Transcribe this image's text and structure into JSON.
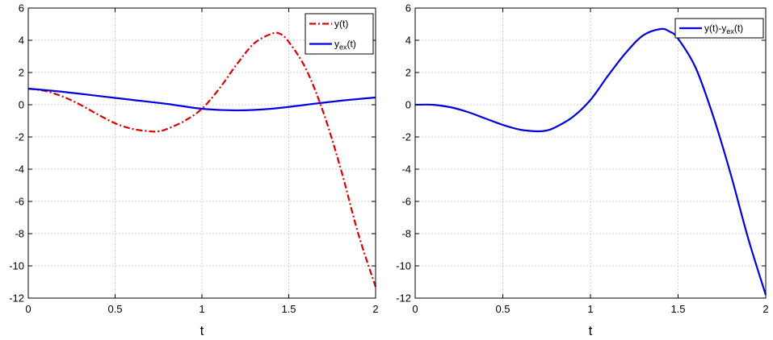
{
  "chart_data": [
    {
      "type": "line",
      "xlabel": "t",
      "ylabel": "",
      "xlim": [
        0,
        2
      ],
      "ylim": [
        -12,
        6
      ],
      "xticks": [
        "0",
        "0.5",
        "1",
        "1.5",
        "2"
      ],
      "yticks": [
        "6",
        "4",
        "2",
        "0",
        "-2",
        "-4",
        "-6",
        "-8",
        "-10",
        "-12"
      ],
      "grid": true,
      "legend_position": "top-right",
      "series": [
        {
          "name": "y(t)",
          "legend": {
            "base": "y(t)",
            "sub": "",
            "tail": ""
          },
          "color": "#e00000",
          "style": "dash-dot",
          "x": [
            0,
            0.1,
            0.2,
            0.3,
            0.4,
            0.5,
            0.6,
            0.7,
            0.75,
            0.8,
            0.9,
            1.0,
            1.1,
            1.2,
            1.3,
            1.4,
            1.45,
            1.5,
            1.6,
            1.7,
            1.8,
            1.9,
            2.0
          ],
          "y": [
            1.0,
            0.85,
            0.5,
            0.0,
            -0.6,
            -1.15,
            -1.5,
            -1.65,
            -1.65,
            -1.5,
            -1.0,
            -0.25,
            1.0,
            2.5,
            3.8,
            4.4,
            4.4,
            3.9,
            2.2,
            -0.5,
            -4.0,
            -8.0,
            -11.3
          ]
        },
        {
          "name": "yex(t)",
          "legend": {
            "base": "y",
            "sub": "ex",
            "tail": "(t)"
          },
          "color": "#0000e0",
          "style": "solid",
          "x": [
            0,
            0.2,
            0.4,
            0.6,
            0.8,
            1.0,
            1.2,
            1.4,
            1.6,
            1.8,
            2.0
          ],
          "y": [
            1.0,
            0.8,
            0.55,
            0.3,
            0.05,
            -0.25,
            -0.35,
            -0.25,
            0.0,
            0.25,
            0.45
          ]
        }
      ]
    },
    {
      "type": "line",
      "xlabel": "t",
      "ylabel": "",
      "xlim": [
        0,
        2
      ],
      "ylim": [
        -12,
        6
      ],
      "xticks": [
        "0",
        "0.5",
        "1",
        "1.5",
        "2"
      ],
      "yticks": [
        "6",
        "4",
        "2",
        "0",
        "-2",
        "-4",
        "-6",
        "-8",
        "-10",
        "-12"
      ],
      "grid": true,
      "legend_position": "top-right",
      "series": [
        {
          "name": "y(t)-yex(t)",
          "legend": {
            "base": "y(t)-y",
            "sub": "ex",
            "tail": "(t)"
          },
          "color": "#0000e0",
          "style": "solid",
          "x": [
            0,
            0.1,
            0.2,
            0.3,
            0.4,
            0.5,
            0.6,
            0.7,
            0.75,
            0.8,
            0.9,
            1.0,
            1.1,
            1.2,
            1.3,
            1.4,
            1.45,
            1.5,
            1.6,
            1.7,
            1.8,
            1.9,
            2.0
          ],
          "y": [
            0.0,
            0.0,
            -0.15,
            -0.45,
            -0.85,
            -1.25,
            -1.55,
            -1.65,
            -1.6,
            -1.4,
            -0.75,
            0.3,
            1.8,
            3.2,
            4.3,
            4.7,
            4.55,
            4.1,
            2.3,
            -0.7,
            -4.3,
            -8.3,
            -11.8
          ]
        }
      ]
    }
  ]
}
